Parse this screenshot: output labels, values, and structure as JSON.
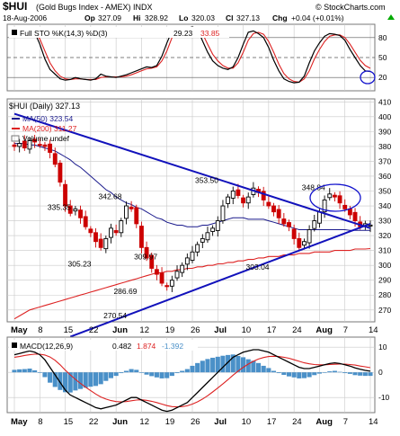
{
  "header": {
    "symbol": "$HUI",
    "name": "(Gold Bugs Index - AMEX) INDX",
    "date": "18-Aug-2006",
    "op_label": "Op",
    "op_value": "327.09",
    "hi_label": "Hi",
    "hi_value": "328.92",
    "lo_label": "Lo",
    "lo_value": "320.03",
    "cl_label": "Cl",
    "cl_value": "327.13",
    "chg_label": "Chg",
    "chg_value": "+0.04 (+0.01%)",
    "chg_arrow": "up-arrow",
    "brand": "© StockCharts.com"
  },
  "colors": {
    "up": "#000000",
    "down": "#cc0000",
    "ma50": "#1a1a8c",
    "ma200": "#dd2222",
    "trend": "#1111bb",
    "sto_k": "#000000",
    "sto_d": "#dd2222",
    "macd_hist": "#4a90c8",
    "annotation": "#1111cc",
    "grid": "#c8c8c8"
  },
  "chart_data": [
    {
      "type": "line",
      "title": "Full STO %K(14,3) %D(3)",
      "legend": {
        "label": "Full STO %K(14,3) %D(3)",
        "k_value": "29.23",
        "d_value": "33.85"
      },
      "yticks": [
        "80",
        "50",
        "20"
      ],
      "ylim": [
        0,
        100
      ],
      "reference_lines": [
        80,
        50,
        20
      ],
      "series": [
        {
          "key": "k",
          "values": [
            90,
            88,
            93,
            92,
            88,
            70,
            48,
            32,
            25,
            18,
            16,
            17,
            20,
            18,
            17,
            16,
            18,
            25,
            22,
            21,
            20,
            22,
            24,
            27,
            30,
            33,
            36,
            35,
            38,
            52,
            72,
            90,
            93,
            95,
            94,
            96,
            93,
            75,
            58,
            45,
            38,
            34,
            32,
            36,
            50,
            70,
            88,
            90,
            86,
            80,
            65,
            46,
            30,
            18,
            14,
            12,
            13,
            22,
            42,
            60,
            72,
            82,
            86,
            85,
            83,
            76,
            62,
            50,
            38,
            30,
            29
          ]
        },
        {
          "key": "d",
          "values": [
            86,
            87,
            90,
            90,
            88,
            78,
            60,
            42,
            30,
            22,
            18,
            17,
            18,
            18,
            17,
            17,
            17,
            20,
            21,
            21,
            21,
            21,
            22,
            24,
            27,
            30,
            33,
            34,
            36,
            45,
            60,
            80,
            90,
            93,
            94,
            95,
            94,
            86,
            70,
            55,
            45,
            38,
            34,
            34,
            42,
            58,
            76,
            86,
            88,
            85,
            74,
            58,
            40,
            26,
            18,
            14,
            13,
            18,
            30,
            48,
            62,
            74,
            82,
            84,
            84,
            80,
            70,
            58,
            46,
            38,
            33.85
          ]
        }
      ]
    },
    {
      "type": "candlestick",
      "legend": {
        "price_label": "$HUI (Daily) 327.13",
        "ma50_label": "MA(50) 323.54",
        "ma200_label": "MA(200) 311.27",
        "volume_label": "Volume undef"
      },
      "yticks": [
        "410",
        "400",
        "390",
        "380",
        "370",
        "360",
        "350",
        "340",
        "330",
        "320",
        "310",
        "300",
        "290",
        "280",
        "270"
      ],
      "ylim": [
        262,
        412
      ],
      "x_labels": [
        "May",
        "8",
        "15",
        "22",
        "Jun",
        "12",
        "19",
        "26",
        "Jul",
        "10",
        "17",
        "24",
        "Aug",
        "7",
        "14"
      ],
      "annotations": [
        {
          "text": "335.35",
          "value": 335.35
        },
        {
          "text": "342.68",
          "value": 342.68
        },
        {
          "text": "353.50",
          "value": 353.5
        },
        {
          "text": "348.84",
          "value": 348.84
        },
        {
          "text": "305.23",
          "value": 305.23
        },
        {
          "text": "309.97",
          "value": 309.97
        },
        {
          "text": "286.69",
          "value": 286.69
        },
        {
          "text": "270.54",
          "value": 270.54
        },
        {
          "text": "303.04",
          "value": 303.04
        }
      ],
      "close": [
        380,
        382,
        379,
        384,
        383,
        381,
        380,
        376,
        368,
        356,
        340,
        335,
        338,
        332,
        326,
        322,
        316,
        312,
        318,
        325,
        322,
        330,
        340,
        338,
        328,
        312,
        305,
        298,
        294,
        288,
        286,
        290,
        296,
        300,
        305,
        309,
        314,
        318,
        322,
        325,
        330,
        340,
        346,
        350,
        347,
        342,
        346,
        352,
        349,
        344,
        340,
        336,
        332,
        328,
        326,
        318,
        312,
        316,
        324,
        330,
        336,
        344,
        348,
        346,
        342,
        338,
        334,
        330,
        326,
        328,
        327.13
      ],
      "ma50": [
        382,
        382,
        382,
        381,
        381,
        380,
        379,
        378,
        377,
        375,
        373,
        371,
        368,
        366,
        363,
        360,
        357,
        354,
        351,
        349,
        346,
        344,
        342,
        341,
        339,
        338,
        336,
        334,
        332,
        331,
        329,
        328,
        327,
        327,
        326,
        326,
        326,
        327,
        327,
        328,
        329,
        330,
        331,
        332,
        332,
        332,
        331,
        331,
        331,
        331,
        330,
        329,
        328,
        327,
        326,
        325,
        324,
        324,
        324,
        324,
        324,
        324,
        324,
        324,
        324,
        324,
        323.5,
        323.5,
        323.5,
        323.5,
        323.54
      ],
      "ma200": [
        264,
        266,
        268,
        270,
        271,
        272,
        273,
        274,
        275,
        276,
        277,
        278,
        279,
        280,
        281,
        282,
        283,
        284,
        285,
        286,
        287,
        288,
        289,
        290,
        291,
        292,
        293,
        294,
        295,
        295,
        296,
        296,
        297,
        297,
        298,
        298,
        299,
        299,
        300,
        300,
        301,
        301,
        302,
        302,
        303,
        303,
        304,
        304,
        305,
        305,
        306,
        306,
        306,
        307,
        307,
        307,
        308,
        308,
        308,
        309,
        309,
        309,
        309,
        310,
        310,
        310,
        310,
        311,
        311,
        311,
        311.27
      ],
      "trendlines": [
        {
          "from": [
            0,
            402
          ],
          "to": [
            70,
            325
          ]
        },
        {
          "from": [
            11,
            252
          ],
          "to": [
            70,
            328
          ]
        }
      ]
    },
    {
      "type": "bar",
      "title": "MACD(12,26,9)",
      "legend": {
        "label": "MACD(12,26,9)",
        "macd_value": "0.482",
        "signal_value": "1.874",
        "hist_value": "-1.392"
      },
      "yticks": [
        "10",
        "0",
        "-10"
      ],
      "ylim": [
        -16,
        14
      ],
      "x_labels": [
        "May",
        "8",
        "15",
        "22",
        "Jun",
        "12",
        "19",
        "26",
        "Jul",
        "10",
        "17",
        "24",
        "Aug",
        "7",
        "14"
      ],
      "series": [
        {
          "key": "macd",
          "values": [
            7,
            7.5,
            8,
            8.5,
            8,
            7,
            5,
            2,
            -1,
            -4,
            -7,
            -9,
            -10,
            -11,
            -12,
            -13,
            -14,
            -14.5,
            -14,
            -13.5,
            -13,
            -12,
            -11,
            -10,
            -10,
            -11,
            -12,
            -13,
            -14,
            -15,
            -15.5,
            -15,
            -14,
            -13,
            -12,
            -10,
            -8,
            -6,
            -4,
            -2,
            0,
            2,
            4,
            6,
            7,
            8,
            8.5,
            9,
            9,
            8.5,
            8,
            7,
            6,
            5,
            4,
            3,
            2,
            1.5,
            1.5,
            2,
            2.5,
            3,
            3.5,
            3.8,
            3.5,
            3,
            2.5,
            1.8,
            1.2,
            0.8,
            0.482
          ]
        },
        {
          "key": "signal",
          "values": [
            6,
            6.3,
            6.7,
            7,
            7.2,
            7.2,
            6.9,
            6.1,
            4.8,
            3,
            0.9,
            -1,
            -2.8,
            -4.4,
            -5.9,
            -7.3,
            -8.6,
            -9.8,
            -10.6,
            -11.2,
            -11.6,
            -11.7,
            -11.6,
            -11.3,
            -11,
            -10.9,
            -11.1,
            -11.5,
            -12,
            -12.6,
            -13.2,
            -13.6,
            -13.7,
            -13.6,
            -13.3,
            -12.6,
            -11.7,
            -10.6,
            -9.3,
            -7.8,
            -6.2,
            -4.6,
            -2.9,
            -1.1,
            0.5,
            2,
            3.3,
            4.4,
            5.3,
            5.9,
            6.3,
            6.4,
            6.3,
            6,
            5.6,
            5,
            4.4,
            3.8,
            3.4,
            3.1,
            3,
            3,
            3.1,
            3.2,
            3.3,
            3.3,
            3.1,
            2.9,
            2.5,
            2.2,
            1.874
          ]
        },
        {
          "key": "histogram",
          "values": [
            1,
            1.2,
            1.3,
            1.5,
            0.8,
            -0.2,
            -1.9,
            -4.1,
            -5.8,
            -7,
            -7.9,
            -8,
            -7.2,
            -6.6,
            -6.1,
            -5.7,
            -5.4,
            -4.7,
            -3.4,
            -2.3,
            -1.4,
            -0.3,
            0.6,
            1.3,
            1,
            -0.1,
            -0.9,
            -1.5,
            -2,
            -2.4,
            -2.3,
            -1.4,
            -0.3,
            0.6,
            1.3,
            2.6,
            3.7,
            4.6,
            5.3,
            5.8,
            6.2,
            6.6,
            6.9,
            7.1,
            6.5,
            6,
            5.2,
            4.6,
            3.7,
            2.6,
            1.7,
            0.6,
            -0.3,
            -1,
            -1.6,
            -2,
            -2.4,
            -2.3,
            -1.9,
            -1.1,
            -0.5,
            0,
            0.4,
            0.6,
            0.2,
            -0.3,
            -0.6,
            -1.1,
            -1.3,
            -1.4,
            -1.392
          ]
        }
      ]
    }
  ]
}
